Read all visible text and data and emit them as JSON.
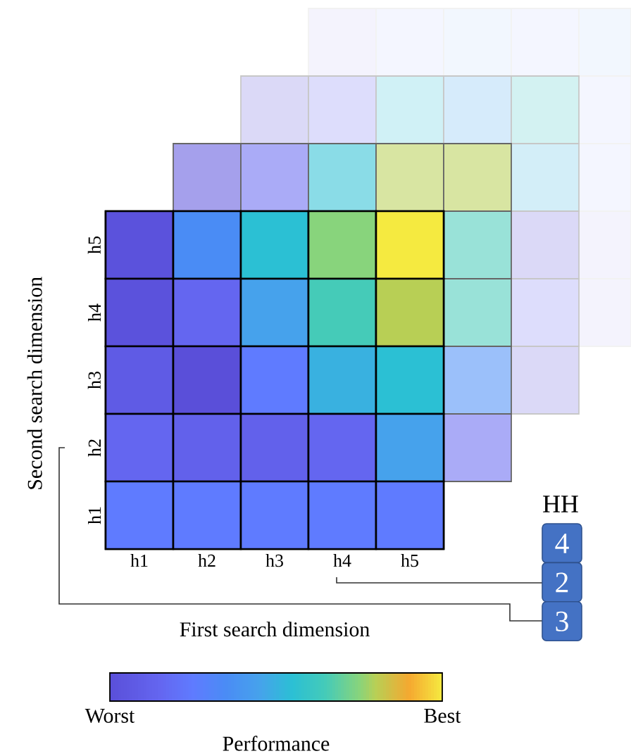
{
  "chart_data": {
    "type": "heatmap",
    "categories": [
      "h1",
      "h2",
      "h3",
      "h4",
      "h5"
    ],
    "y_categories": [
      "h5",
      "h4",
      "h3",
      "h2",
      "h1"
    ],
    "cells": [
      [
        0.02,
        0.35,
        0.55,
        0.75,
        1
      ],
      [
        0.02,
        0.15,
        0.45,
        0.65,
        0.8
      ],
      [
        0.08,
        0,
        0.25,
        0.5,
        0.55
      ],
      [
        0.15,
        0.12,
        0.12,
        0.15,
        0.45
      ],
      [
        0.25,
        0.25,
        0.25,
        0.25,
        0.25
      ]
    ],
    "xlabel": "First search dimension",
    "ylabel": "Second search dimension",
    "clabel": "Performance",
    "clim": [
      0,
      1
    ],
    "cticks": [
      {
        "value": 0,
        "label": "Worst"
      },
      {
        "value": 1,
        "label": "Best"
      }
    ],
    "annotations": [
      "HH",
      "4",
      "2",
      "3"
    ]
  }
}
